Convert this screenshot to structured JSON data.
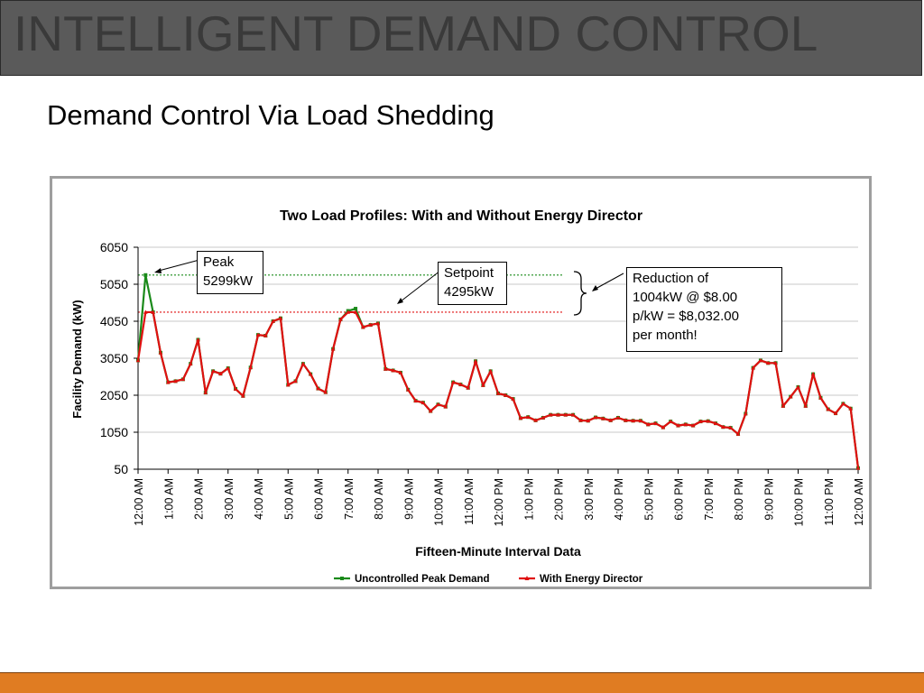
{
  "header": {
    "title": "INTELLIGENT DEMAND CONTROL"
  },
  "slide": {
    "subtitle": "Demand Control Via Load Shedding"
  },
  "colors": {
    "series_uncontrolled": "#1a8a1a",
    "series_director": "#e01010",
    "footer": "#e07c22",
    "header": "#5a5a5a"
  },
  "annotations": {
    "peak": [
      "Peak",
      "5299kW"
    ],
    "setpoint": [
      "Setpoint",
      "4295kW"
    ],
    "reduction": [
      "Reduction of",
      "1004kW @ $8.00",
      "p/kW = $8,032.00",
      "per month!"
    ]
  },
  "chart_data": {
    "type": "line",
    "title": "Two Load Profiles: With and Without Energy Director",
    "xlabel": "Fifteen-Minute Interval Data",
    "ylabel": "Facility Demand (kW)",
    "ylim": [
      50,
      6050
    ],
    "yticks": [
      50,
      1050,
      2050,
      3050,
      4050,
      5050,
      6050
    ],
    "xtick_labels": [
      "12:00 AM",
      "1:00 AM",
      "2:00 AM",
      "3:00 AM",
      "4:00 AM",
      "5:00 AM",
      "6:00 AM",
      "7:00 AM",
      "8:00 AM",
      "9:00 AM",
      "10:00 AM",
      "11:00 AM",
      "12:00 PM",
      "1:00 PM",
      "2:00 PM",
      "3:00 PM",
      "4:00 PM",
      "5:00 PM",
      "6:00 PM",
      "7:00 PM",
      "8:00 PM",
      "9:00 PM",
      "10:00 PM",
      "11:00 PM",
      "12:00 AM"
    ],
    "x_hours": [
      0,
      0.25,
      0.5,
      0.75,
      1,
      1.25,
      1.5,
      1.75,
      2,
      2.25,
      2.5,
      2.75,
      3,
      3.25,
      3.5,
      3.75,
      4,
      4.25,
      4.5,
      4.75,
      5,
      5.25,
      5.5,
      5.75,
      6,
      6.25,
      6.5,
      6.75,
      7,
      7.25,
      7.5,
      7.75,
      8,
      8.25,
      8.5,
      8.75,
      9,
      9.25,
      9.5,
      9.75,
      10,
      10.25,
      10.5,
      10.75,
      11,
      11.25,
      11.5,
      11.75,
      12,
      12.25,
      12.5,
      12.75,
      13,
      13.25,
      13.5,
      13.75,
      14,
      14.25,
      14.5,
      14.75,
      15,
      15.25,
      15.5,
      15.75,
      16,
      16.25,
      16.5,
      16.75,
      17,
      17.25,
      17.5,
      17.75,
      18,
      18.25,
      18.5,
      18.75,
      19,
      19.25,
      19.5,
      19.75,
      20,
      20.25,
      20.5,
      20.75,
      21,
      21.25,
      21.5,
      21.75,
      22,
      22.25,
      22.5,
      22.75,
      23,
      23.25,
      23.5,
      23.75,
      24
    ],
    "reference_lines": [
      {
        "value": 5299,
        "color": "#1a8a1a"
      },
      {
        "value": 4295,
        "color": "#e01010"
      }
    ],
    "legend": "bottom",
    "grid": true,
    "series": [
      {
        "name": "Uncontrolled Peak Demand",
        "color": "#1a8a1a",
        "marker": "square",
        "values": [
          2990,
          5299,
          4295,
          3200,
          2400,
          2430,
          2480,
          2900,
          3550,
          2120,
          2700,
          2630,
          2780,
          2220,
          2030,
          2800,
          3680,
          3660,
          4050,
          4130,
          2330,
          2430,
          2900,
          2620,
          2230,
          2130,
          3300,
          4100,
          4330,
          4390,
          3890,
          3950,
          3990,
          2760,
          2720,
          2660,
          2200,
          1900,
          1850,
          1620,
          1800,
          1740,
          2400,
          2340,
          2250,
          2970,
          2320,
          2700,
          2100,
          2050,
          1950,
          1430,
          1460,
          1370,
          1440,
          1520,
          1520,
          1520,
          1520,
          1370,
          1360,
          1450,
          1420,
          1370,
          1440,
          1370,
          1360,
          1360,
          1260,
          1290,
          1180,
          1340,
          1230,
          1260,
          1230,
          1340,
          1350,
          1290,
          1190,
          1170,
          1000,
          1550,
          2790,
          2990,
          2920,
          2920,
          1760,
          2010,
          2270,
          1760,
          2620,
          1980,
          1670,
          1560,
          1820,
          1690,
          80
        ]
      },
      {
        "name": "With Energy Director",
        "color": "#e01010",
        "marker": "triangle",
        "values": [
          2990,
          4295,
          4295,
          3200,
          2400,
          2430,
          2480,
          2900,
          3550,
          2120,
          2700,
          2630,
          2780,
          2220,
          2030,
          2800,
          3680,
          3660,
          4050,
          4130,
          2330,
          2430,
          2900,
          2620,
          2230,
          2130,
          3300,
          4100,
          4295,
          4295,
          3890,
          3950,
          3990,
          2760,
          2720,
          2660,
          2200,
          1900,
          1850,
          1620,
          1800,
          1740,
          2400,
          2340,
          2250,
          2970,
          2320,
          2700,
          2100,
          2050,
          1950,
          1430,
          1460,
          1370,
          1440,
          1520,
          1520,
          1520,
          1520,
          1370,
          1360,
          1450,
          1420,
          1370,
          1440,
          1370,
          1360,
          1360,
          1260,
          1290,
          1180,
          1340,
          1230,
          1260,
          1230,
          1340,
          1350,
          1290,
          1190,
          1170,
          1000,
          1550,
          2790,
          2990,
          2920,
          2920,
          1760,
          2010,
          2270,
          1760,
          2620,
          1980,
          1670,
          1560,
          1820,
          1690,
          80
        ]
      }
    ]
  }
}
